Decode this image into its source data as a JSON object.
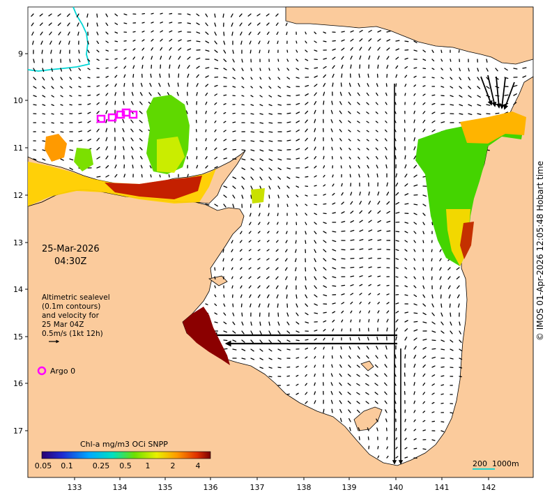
{
  "date_label": "25-Mar-2026",
  "time_label": "04:30Z",
  "altimetry_note": {
    "line1": "Altimetric sealevel",
    "line2": "(0.1m contours)",
    "line3": "and velocity for",
    "line4": "25 Mar 04Z",
    "scale_label": "0.5m/s (1kt 12h)"
  },
  "argo_label": "Argo 0",
  "colorbar": {
    "title": "Chl-a mg/m3 OCi SNPP",
    "ticks": [
      "0.05",
      "0.1",
      "0.25",
      "0.5",
      "1",
      "2",
      "4"
    ]
  },
  "lon_ticks": [
    "133",
    "134",
    "135",
    "136",
    "137",
    "138",
    "139",
    "140",
    "141",
    "142"
  ],
  "lat_ticks": [
    "9",
    "10",
    "11",
    "12",
    "13",
    "14",
    "15",
    "16",
    "17"
  ],
  "depth_legend": {
    "label_a": "200",
    "label_b": "1000m"
  },
  "credit": "© IMOS 01-Apr-2026 12:05:48 Hobart time",
  "colors": {
    "land": "#fbcb9c",
    "coastline": "#000000",
    "argo_marker": "#ff00ff",
    "contour_200m": "#00d5d5",
    "chl_high": "#8b0000",
    "chl_mid": "#ffb400",
    "chl_low": "#2bdc2b"
  }
}
